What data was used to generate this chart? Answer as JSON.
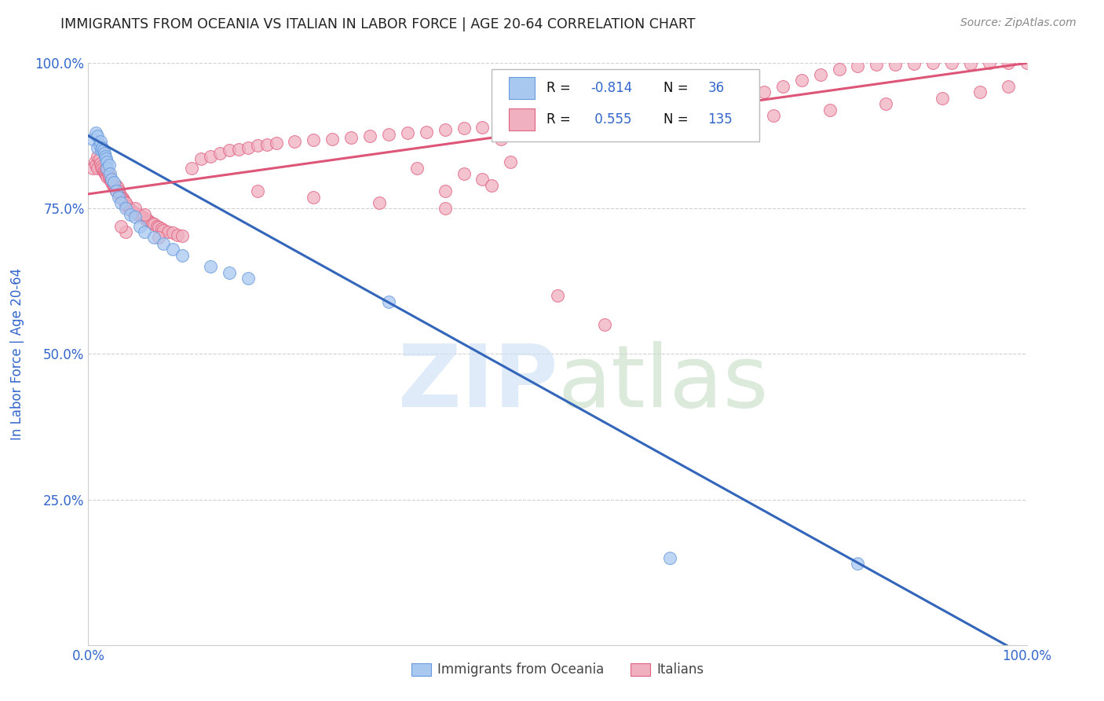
{
  "title": "IMMIGRANTS FROM OCEANIA VS ITALIAN IN LABOR FORCE | AGE 20-64 CORRELATION CHART",
  "source": "Source: ZipAtlas.com",
  "ylabel": "In Labor Force | Age 20-64",
  "xlim": [
    0.0,
    1.0
  ],
  "ylim": [
    0.0,
    1.0
  ],
  "background_color": "#ffffff",
  "grid_color": "#cccccc",
  "legend_blue_label": "Immigrants from Oceania",
  "legend_pink_label": "Italians",
  "blue_R": "-0.814",
  "blue_N": "36",
  "pink_R": "0.555",
  "pink_N": "135",
  "blue_color": "#a8c8f0",
  "pink_color": "#f0b0c0",
  "blue_edge_color": "#6699dd",
  "pink_edge_color": "#e06080",
  "blue_line_color": "#3366bb",
  "pink_line_color": "#dd5577",
  "title_color": "#222222",
  "axis_label_color": "#3366cc",
  "tick_label_color": "#3366cc",
  "blue_intercept": 0.875,
  "blue_slope": -0.895,
  "pink_intercept": 0.775,
  "pink_slope": 0.225,
  "blue_x": [
    0.005,
    0.008,
    0.01,
    0.01,
    0.012,
    0.013,
    0.014,
    0.015,
    0.016,
    0.017,
    0.018,
    0.019,
    0.02,
    0.02,
    0.022,
    0.023,
    0.025,
    0.027,
    0.03,
    0.032,
    0.035,
    0.04,
    0.045,
    0.05,
    0.055,
    0.06,
    0.07,
    0.08,
    0.09,
    0.1,
    0.13,
    0.15,
    0.17,
    0.32,
    0.62,
    0.82
  ],
  "blue_y": [
    0.87,
    0.88,
    0.875,
    0.855,
    0.86,
    0.865,
    0.85,
    0.855,
    0.85,
    0.845,
    0.84,
    0.835,
    0.83,
    0.82,
    0.825,
    0.81,
    0.8,
    0.795,
    0.78,
    0.77,
    0.76,
    0.75,
    0.74,
    0.735,
    0.72,
    0.71,
    0.7,
    0.69,
    0.68,
    0.67,
    0.65,
    0.64,
    0.63,
    0.59,
    0.15,
    0.14
  ],
  "pink_x": [
    0.005,
    0.007,
    0.008,
    0.01,
    0.01,
    0.012,
    0.013,
    0.014,
    0.015,
    0.016,
    0.017,
    0.018,
    0.019,
    0.02,
    0.02,
    0.021,
    0.022,
    0.023,
    0.024,
    0.025,
    0.026,
    0.027,
    0.028,
    0.029,
    0.03,
    0.03,
    0.031,
    0.032,
    0.033,
    0.034,
    0.035,
    0.036,
    0.037,
    0.038,
    0.039,
    0.04,
    0.041,
    0.042,
    0.043,
    0.045,
    0.047,
    0.05,
    0.053,
    0.055,
    0.058,
    0.06,
    0.063,
    0.065,
    0.068,
    0.07,
    0.073,
    0.075,
    0.078,
    0.08,
    0.085,
    0.09,
    0.095,
    0.1,
    0.11,
    0.12,
    0.13,
    0.14,
    0.15,
    0.16,
    0.17,
    0.18,
    0.19,
    0.2,
    0.22,
    0.24,
    0.26,
    0.28,
    0.3,
    0.32,
    0.34,
    0.36,
    0.38,
    0.4,
    0.42,
    0.44,
    0.46,
    0.48,
    0.5,
    0.52,
    0.54,
    0.56,
    0.58,
    0.6,
    0.62,
    0.64,
    0.66,
    0.68,
    0.7,
    0.72,
    0.74,
    0.76,
    0.78,
    0.8,
    0.82,
    0.84,
    0.86,
    0.88,
    0.9,
    0.92,
    0.94,
    0.96,
    0.98,
    1.0,
    0.35,
    0.4,
    0.42,
    0.45,
    0.5,
    0.55,
    0.38,
    0.43,
    0.38,
    0.31,
    0.24,
    0.18,
    0.44,
    0.52,
    0.6,
    0.66,
    0.73,
    0.79,
    0.85,
    0.91,
    0.95,
    0.98,
    0.04,
    0.05,
    0.06,
    0.075,
    0.04,
    0.035
  ],
  "pink_y": [
    0.82,
    0.83,
    0.825,
    0.84,
    0.82,
    0.835,
    0.828,
    0.822,
    0.818,
    0.815,
    0.812,
    0.81,
    0.808,
    0.805,
    0.815,
    0.81,
    0.805,
    0.8,
    0.798,
    0.795,
    0.79,
    0.788,
    0.785,
    0.783,
    0.78,
    0.79,
    0.785,
    0.78,
    0.775,
    0.773,
    0.77,
    0.768,
    0.765,
    0.763,
    0.76,
    0.758,
    0.755,
    0.753,
    0.75,
    0.748,
    0.745,
    0.743,
    0.74,
    0.738,
    0.735,
    0.733,
    0.73,
    0.728,
    0.725,
    0.723,
    0.72,
    0.718,
    0.715,
    0.713,
    0.71,
    0.708,
    0.705,
    0.703,
    0.82,
    0.835,
    0.84,
    0.845,
    0.85,
    0.852,
    0.855,
    0.858,
    0.86,
    0.862,
    0.865,
    0.868,
    0.87,
    0.872,
    0.875,
    0.878,
    0.88,
    0.882,
    0.885,
    0.888,
    0.89,
    0.892,
    0.895,
    0.898,
    0.9,
    0.902,
    0.905,
    0.908,
    0.91,
    0.912,
    0.915,
    0.918,
    0.92,
    0.93,
    0.94,
    0.95,
    0.96,
    0.97,
    0.98,
    0.99,
    0.995,
    0.998,
    0.998,
    0.999,
    1.0,
    1.0,
    0.999,
    1.0,
    1.0,
    1.0,
    0.82,
    0.81,
    0.8,
    0.83,
    0.6,
    0.55,
    0.78,
    0.79,
    0.75,
    0.76,
    0.77,
    0.78,
    0.87,
    0.88,
    0.89,
    0.9,
    0.91,
    0.92,
    0.93,
    0.94,
    0.95,
    0.96,
    0.76,
    0.75,
    0.74,
    0.7,
    0.71,
    0.72
  ]
}
